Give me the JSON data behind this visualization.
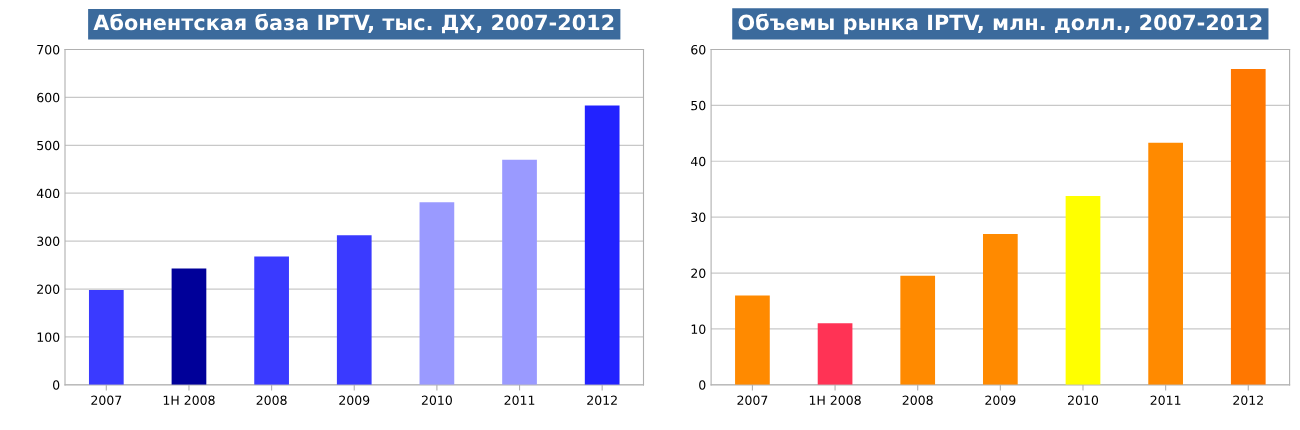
{
  "chart_data": [
    {
      "type": "bar",
      "title": "Абонентская база IPTV, тыс. ДХ, 2007-2012",
      "categories": [
        "2007",
        "1H 2008",
        "2008",
        "2009",
        "2010",
        "2011",
        "2012"
      ],
      "values": [
        198,
        243,
        268,
        312,
        381,
        470,
        583
      ],
      "colors": [
        "#3a3aff",
        "#000099",
        "#3a3aff",
        "#3a3aff",
        "#9a9aff",
        "#9a9aff",
        "#2222ff"
      ],
      "ylim": [
        0,
        700
      ],
      "yticks": [
        0,
        100,
        200,
        300,
        400,
        500,
        600,
        700
      ],
      "grid": "y"
    },
    {
      "type": "bar",
      "title": "Объемы рынка IPTV, млн. долл., 2007-2012",
      "categories": [
        "2007",
        "1H 2008",
        "2008",
        "2009",
        "2010",
        "2011",
        "2012"
      ],
      "values": [
        16.0,
        11.0,
        19.5,
        27.0,
        33.8,
        43.3,
        56.5
      ],
      "colors": [
        "#ff8a00",
        "#ff3355",
        "#ff8a00",
        "#ff8a00",
        "#ffff00",
        "#ff8a00",
        "#ff7700"
      ],
      "ylim": [
        0,
        60
      ],
      "yticks": [
        0,
        10,
        20,
        30,
        40,
        50,
        60
      ],
      "grid": "y"
    }
  ]
}
